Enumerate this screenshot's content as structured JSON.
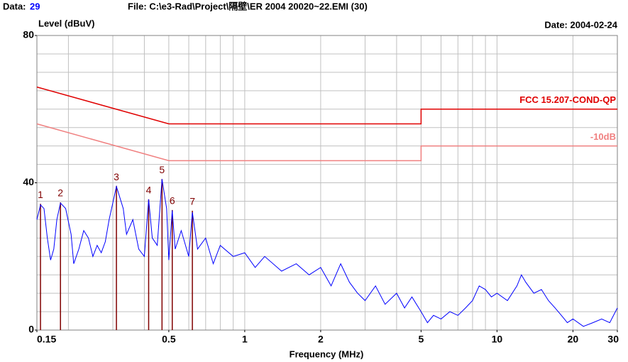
{
  "chart_data": {
    "type": "line",
    "header": {
      "data_label": "Data:",
      "data_value": "29",
      "file": "File: C:\\e3-Rad\\Project\\隔壁\\ER 2004 20020~22.EMI  (30)",
      "date": "Date: 2004-02-24"
    },
    "ylabel": "Level (dBuV)",
    "xlabel": "Frequency (MHz)",
    "xlim": [
      0.15,
      30
    ],
    "ylim": [
      0,
      80
    ],
    "log_x": true,
    "xticks": [
      0.15,
      0.5,
      1,
      2,
      5,
      10,
      20,
      30
    ],
    "yticks": [
      0,
      40,
      80
    ],
    "xgrid": [
      0.2,
      0.3,
      0.4,
      0.5,
      0.6,
      0.7,
      0.8,
      0.9,
      1,
      2,
      3,
      4,
      5,
      6,
      7,
      8,
      9,
      10,
      20
    ],
    "ygrid": [
      5,
      10,
      15,
      20,
      25,
      30,
      35,
      40,
      45,
      50,
      55,
      60,
      65,
      70,
      75
    ],
    "grid_color": "#c0c0c0",
    "series": [
      {
        "name": "FCC 15.207-COND-QP",
        "color": "#e00000",
        "x": [
          0.15,
          0.5,
          5,
          5,
          30
        ],
        "values": [
          66,
          56,
          56,
          60,
          60
        ]
      },
      {
        "name": "-10dB",
        "color": "#f08080",
        "x": [
          0.15,
          0.5,
          5,
          5,
          30
        ],
        "values": [
          56,
          46,
          46,
          50,
          50
        ]
      },
      {
        "color": "#0000ff",
        "x": [
          0.15,
          0.155,
          0.16,
          0.165,
          0.17,
          0.175,
          0.18,
          0.186,
          0.195,
          0.205,
          0.21,
          0.22,
          0.23,
          0.24,
          0.25,
          0.26,
          0.27,
          0.28,
          0.29,
          0.31,
          0.33,
          0.34,
          0.36,
          0.38,
          0.4,
          0.416,
          0.43,
          0.45,
          0.47,
          0.49,
          0.5,
          0.516,
          0.53,
          0.56,
          0.6,
          0.62,
          0.65,
          0.7,
          0.75,
          0.8,
          0.9,
          1,
          1.1,
          1.2,
          1.4,
          1.6,
          1.8,
          2,
          2.2,
          2.4,
          2.6,
          2.8,
          3,
          3.3,
          3.6,
          4,
          4.3,
          4.6,
          5,
          5.3,
          5.6,
          6,
          6.5,
          7,
          7.5,
          8,
          8.5,
          9,
          9.5,
          10,
          11,
          12,
          12.5,
          13,
          14,
          15,
          16,
          17,
          18,
          19,
          20,
          22,
          24,
          26,
          28,
          30
        ],
        "values": [
          30,
          34,
          33,
          25,
          19,
          22,
          30,
          34.5,
          33,
          26,
          18,
          22,
          27,
          25,
          20,
          23,
          21,
          24,
          30,
          39,
          33,
          26,
          30,
          22,
          20,
          35.5,
          25,
          23,
          41,
          33,
          19,
          32.5,
          22,
          27,
          20,
          32,
          22,
          25,
          18,
          23,
          20,
          21,
          17,
          20,
          16,
          18,
          15,
          17,
          12,
          18,
          13,
          10,
          8,
          12,
          7,
          10,
          6,
          9,
          5,
          2,
          4,
          3,
          5,
          4,
          6,
          8,
          12,
          11,
          9,
          10,
          8,
          12,
          15,
          13,
          10,
          11,
          8,
          6,
          4,
          2,
          3,
          1,
          2,
          3,
          2,
          6
        ]
      }
    ],
    "markers": {
      "color": "#800000",
      "labels": [
        "1",
        "2",
        "3",
        "4",
        "5",
        "6",
        "7"
      ],
      "x": [
        0.155,
        0.186,
        0.31,
        0.416,
        0.47,
        0.516,
        0.62
      ],
      "values": [
        34.3,
        34.7,
        39.1,
        35.5,
        41,
        32.6,
        32.4
      ]
    }
  }
}
